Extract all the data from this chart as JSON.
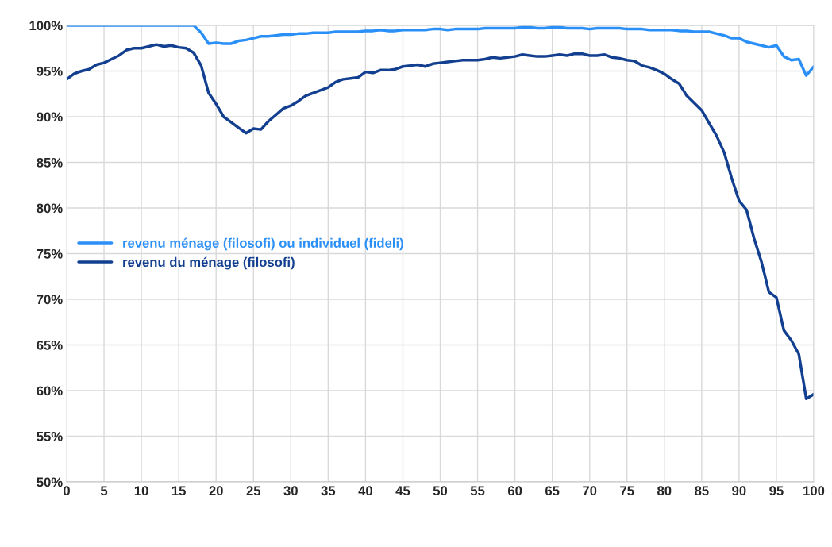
{
  "chart_data": {
    "type": "line",
    "x": [
      0,
      1,
      2,
      3,
      4,
      5,
      6,
      7,
      8,
      9,
      10,
      11,
      12,
      13,
      14,
      15,
      16,
      17,
      18,
      19,
      20,
      21,
      22,
      23,
      24,
      25,
      26,
      27,
      28,
      29,
      30,
      31,
      32,
      33,
      34,
      35,
      36,
      37,
      38,
      39,
      40,
      41,
      42,
      43,
      44,
      45,
      46,
      47,
      48,
      49,
      50,
      51,
      52,
      53,
      54,
      55,
      56,
      57,
      58,
      59,
      60,
      61,
      62,
      63,
      64,
      65,
      66,
      67,
      68,
      69,
      70,
      71,
      72,
      73,
      74,
      75,
      76,
      77,
      78,
      79,
      80,
      81,
      82,
      83,
      84,
      85,
      86,
      87,
      88,
      89,
      90,
      91,
      92,
      93,
      94,
      95,
      96,
      97,
      98,
      99,
      100
    ],
    "series": [
      {
        "name": "revenu ménage (filosofi) ou individuel (fideli)",
        "color": "#2a8ff7",
        "values": [
          100,
          100,
          100,
          100,
          100,
          100,
          100,
          100,
          100,
          100,
          100,
          100,
          100,
          100,
          100,
          100,
          100,
          100,
          99.2,
          98.0,
          98.1,
          98.0,
          98.0,
          98.3,
          98.4,
          98.6,
          98.8,
          98.8,
          98.9,
          99.0,
          99.0,
          99.1,
          99.1,
          99.2,
          99.2,
          99.2,
          99.3,
          99.3,
          99.3,
          99.3,
          99.4,
          99.4,
          99.5,
          99.4,
          99.4,
          99.5,
          99.5,
          99.5,
          99.5,
          99.6,
          99.6,
          99.5,
          99.6,
          99.6,
          99.6,
          99.6,
          99.7,
          99.7,
          99.7,
          99.7,
          99.7,
          99.8,
          99.8,
          99.7,
          99.7,
          99.8,
          99.8,
          99.7,
          99.7,
          99.7,
          99.6,
          99.7,
          99.7,
          99.7,
          99.7,
          99.6,
          99.6,
          99.6,
          99.5,
          99.5,
          99.5,
          99.5,
          99.4,
          99.4,
          99.3,
          99.3,
          99.3,
          99.1,
          98.9,
          98.6,
          98.6,
          98.2,
          98.0,
          97.8,
          97.6,
          97.8,
          96.6,
          96.2,
          96.3,
          94.5,
          95.5
        ]
      },
      {
        "name": "revenu du ménage (filosofi)",
        "color": "#123f8f",
        "values": [
          94.1,
          94.7,
          95.0,
          95.2,
          95.7,
          95.9,
          96.3,
          96.7,
          97.3,
          97.5,
          97.5,
          97.7,
          97.9,
          97.7,
          97.8,
          97.6,
          97.5,
          97.0,
          95.6,
          92.6,
          91.4,
          90.0,
          89.4,
          88.8,
          88.2,
          88.7,
          88.6,
          89.5,
          90.2,
          90.9,
          91.2,
          91.7,
          92.3,
          92.6,
          92.9,
          93.2,
          93.8,
          94.1,
          94.2,
          94.3,
          94.9,
          94.8,
          95.1,
          95.1,
          95.2,
          95.5,
          95.6,
          95.7,
          95.5,
          95.8,
          95.9,
          96.0,
          96.1,
          96.2,
          96.2,
          96.2,
          96.3,
          96.5,
          96.4,
          96.5,
          96.6,
          96.8,
          96.7,
          96.6,
          96.6,
          96.7,
          96.8,
          96.7,
          96.9,
          96.9,
          96.7,
          96.7,
          96.8,
          96.5,
          96.4,
          96.2,
          96.1,
          95.6,
          95.4,
          95.1,
          94.7,
          94.1,
          93.6,
          92.3,
          91.5,
          90.7,
          89.3,
          87.9,
          86.1,
          83.3,
          80.8,
          79.8,
          76.7,
          74.1,
          70.8,
          70.2,
          66.6,
          65.5,
          64.0,
          59.1,
          59.6
        ]
      }
    ],
    "xlim": [
      0,
      100
    ],
    "xticks": [
      0,
      5,
      10,
      15,
      20,
      25,
      30,
      35,
      40,
      45,
      50,
      55,
      60,
      65,
      70,
      75,
      80,
      85,
      90,
      95,
      100
    ],
    "ylim": [
      50,
      100
    ],
    "yticks": [
      {
        "value": 50,
        "label": "50%"
      },
      {
        "value": 55,
        "label": "55%"
      },
      {
        "value": 60,
        "label": "60%"
      },
      {
        "value": 65,
        "label": "65%"
      },
      {
        "value": 70,
        "label": "70%"
      },
      {
        "value": 75,
        "label": "75%"
      },
      {
        "value": 80,
        "label": "80%"
      },
      {
        "value": 85,
        "label": "85%"
      },
      {
        "value": 90,
        "label": "90%"
      },
      {
        "value": 95,
        "label": "95%"
      },
      {
        "value": 100,
        "label": "100%"
      }
    ],
    "grid": true,
    "legend": "center left",
    "marker": "none",
    "line_style": "solid"
  }
}
